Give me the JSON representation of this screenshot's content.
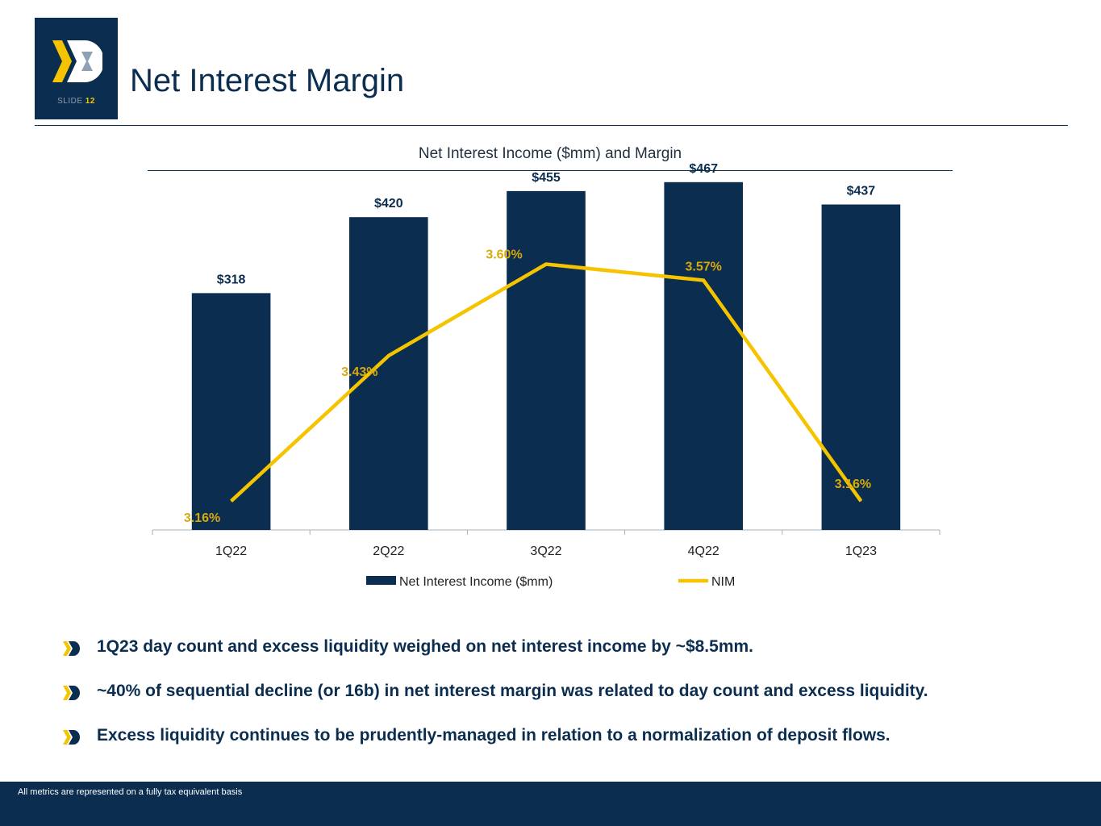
{
  "header": {
    "slide_label": "SLIDE",
    "slide_number": "12",
    "title": "Net Interest Margin"
  },
  "colors": {
    "navy": "#0b2d4f",
    "gold": "#f5c400",
    "gold_label": "#d9a90a",
    "gray": "#a7b0ba"
  },
  "chart_data": {
    "type": "bar",
    "title": "Net Interest Income ($mm) and Margin",
    "categories": [
      "1Q22",
      "2Q22",
      "3Q22",
      "4Q22",
      "1Q23"
    ],
    "series": [
      {
        "name": "Net Interest Income ($mm)",
        "type": "bar",
        "values": [
          318,
          420,
          455,
          467,
          437
        ],
        "labels": [
          "$318",
          "$420",
          "$455",
          "$467",
          "$437"
        ],
        "ylim": [
          0,
          600
        ]
      },
      {
        "name": "NIM",
        "type": "line",
        "values": [
          3.16,
          3.43,
          3.6,
          3.57,
          3.16
        ],
        "labels": [
          "3.16%",
          "3.43%",
          "3.60%",
          "3.57%",
          "3.16%"
        ],
        "ylim": [
          2.2,
          3.8
        ]
      }
    ],
    "legend": [
      "Net Interest Income ($mm)",
      "NIM"
    ],
    "legend_position": "bottom",
    "grid": false
  },
  "bullets": [
    "1Q23 day count and excess liquidity weighed on net interest income by ~$8.5mm.",
    "~40% of sequential decline (or 16b) in net interest margin was related to day count and excess liquidity.",
    "Excess liquidity continues to be prudently-managed in relation to a normalization of deposit flows."
  ],
  "footer": {
    "note": "All metrics are represented on a fully tax equivalent basis"
  }
}
